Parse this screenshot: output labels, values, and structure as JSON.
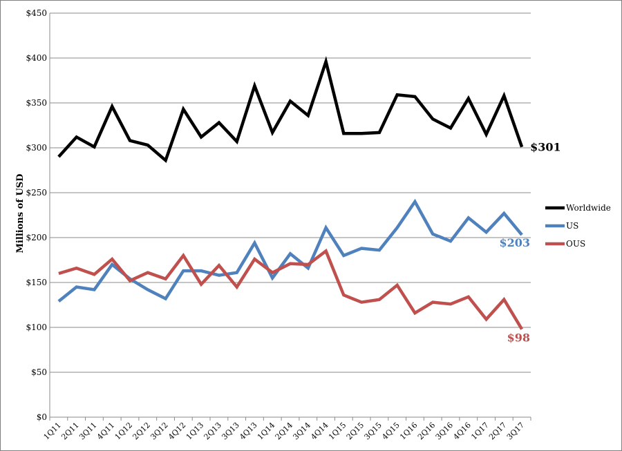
{
  "chart_data": {
    "type": "line",
    "title": "",
    "xlabel": "",
    "ylabel": "Millions of USD",
    "ylim": [
      0,
      450
    ],
    "ytick_step": 50,
    "ytick_labels": [
      "$0",
      "$50",
      "$100",
      "$150",
      "$200",
      "$250",
      "$300",
      "$350",
      "$400",
      "$450"
    ],
    "grid": true,
    "legend_position": "right",
    "categories": [
      "1Q11",
      "2Q11",
      "3Q11",
      "4Q11",
      "1Q12",
      "2Q12",
      "3Q12",
      "4Q12",
      "1Q13",
      "2Q13",
      "3Q13",
      "4Q13",
      "1Q14",
      "2Q14",
      "3Q14",
      "4Q14",
      "1Q15",
      "2Q15",
      "3Q15",
      "4Q15",
      "1Q16",
      "2Q16",
      "3Q16",
      "4Q16",
      "1Q17",
      "2Q17",
      "3Q17"
    ],
    "series": [
      {
        "name": "Worldwide",
        "color": "#000000",
        "values": [
          290,
          312,
          301,
          346,
          308,
          303,
          286,
          343,
          312,
          328,
          307,
          369,
          317,
          352,
          336,
          396,
          316,
          316,
          317,
          359,
          357,
          332,
          322,
          355,
          315,
          358,
          301
        ],
        "end_label": "$301"
      },
      {
        "name": "US",
        "color": "#4f81bd",
        "values": [
          129,
          145,
          142,
          170,
          154,
          142,
          132,
          163,
          163,
          158,
          161,
          194,
          155,
          182,
          166,
          211,
          180,
          188,
          186,
          211,
          240,
          204,
          196,
          222,
          206,
          227,
          203
        ],
        "end_label": "$203"
      },
      {
        "name": "OUS",
        "color": "#c0504d",
        "values": [
          160,
          166,
          159,
          176,
          152,
          161,
          154,
          180,
          148,
          169,
          145,
          176,
          161,
          171,
          170,
          185,
          136,
          128,
          131,
          147,
          116,
          128,
          126,
          134,
          109,
          131,
          98
        ],
        "end_label": "$98"
      }
    ]
  }
}
